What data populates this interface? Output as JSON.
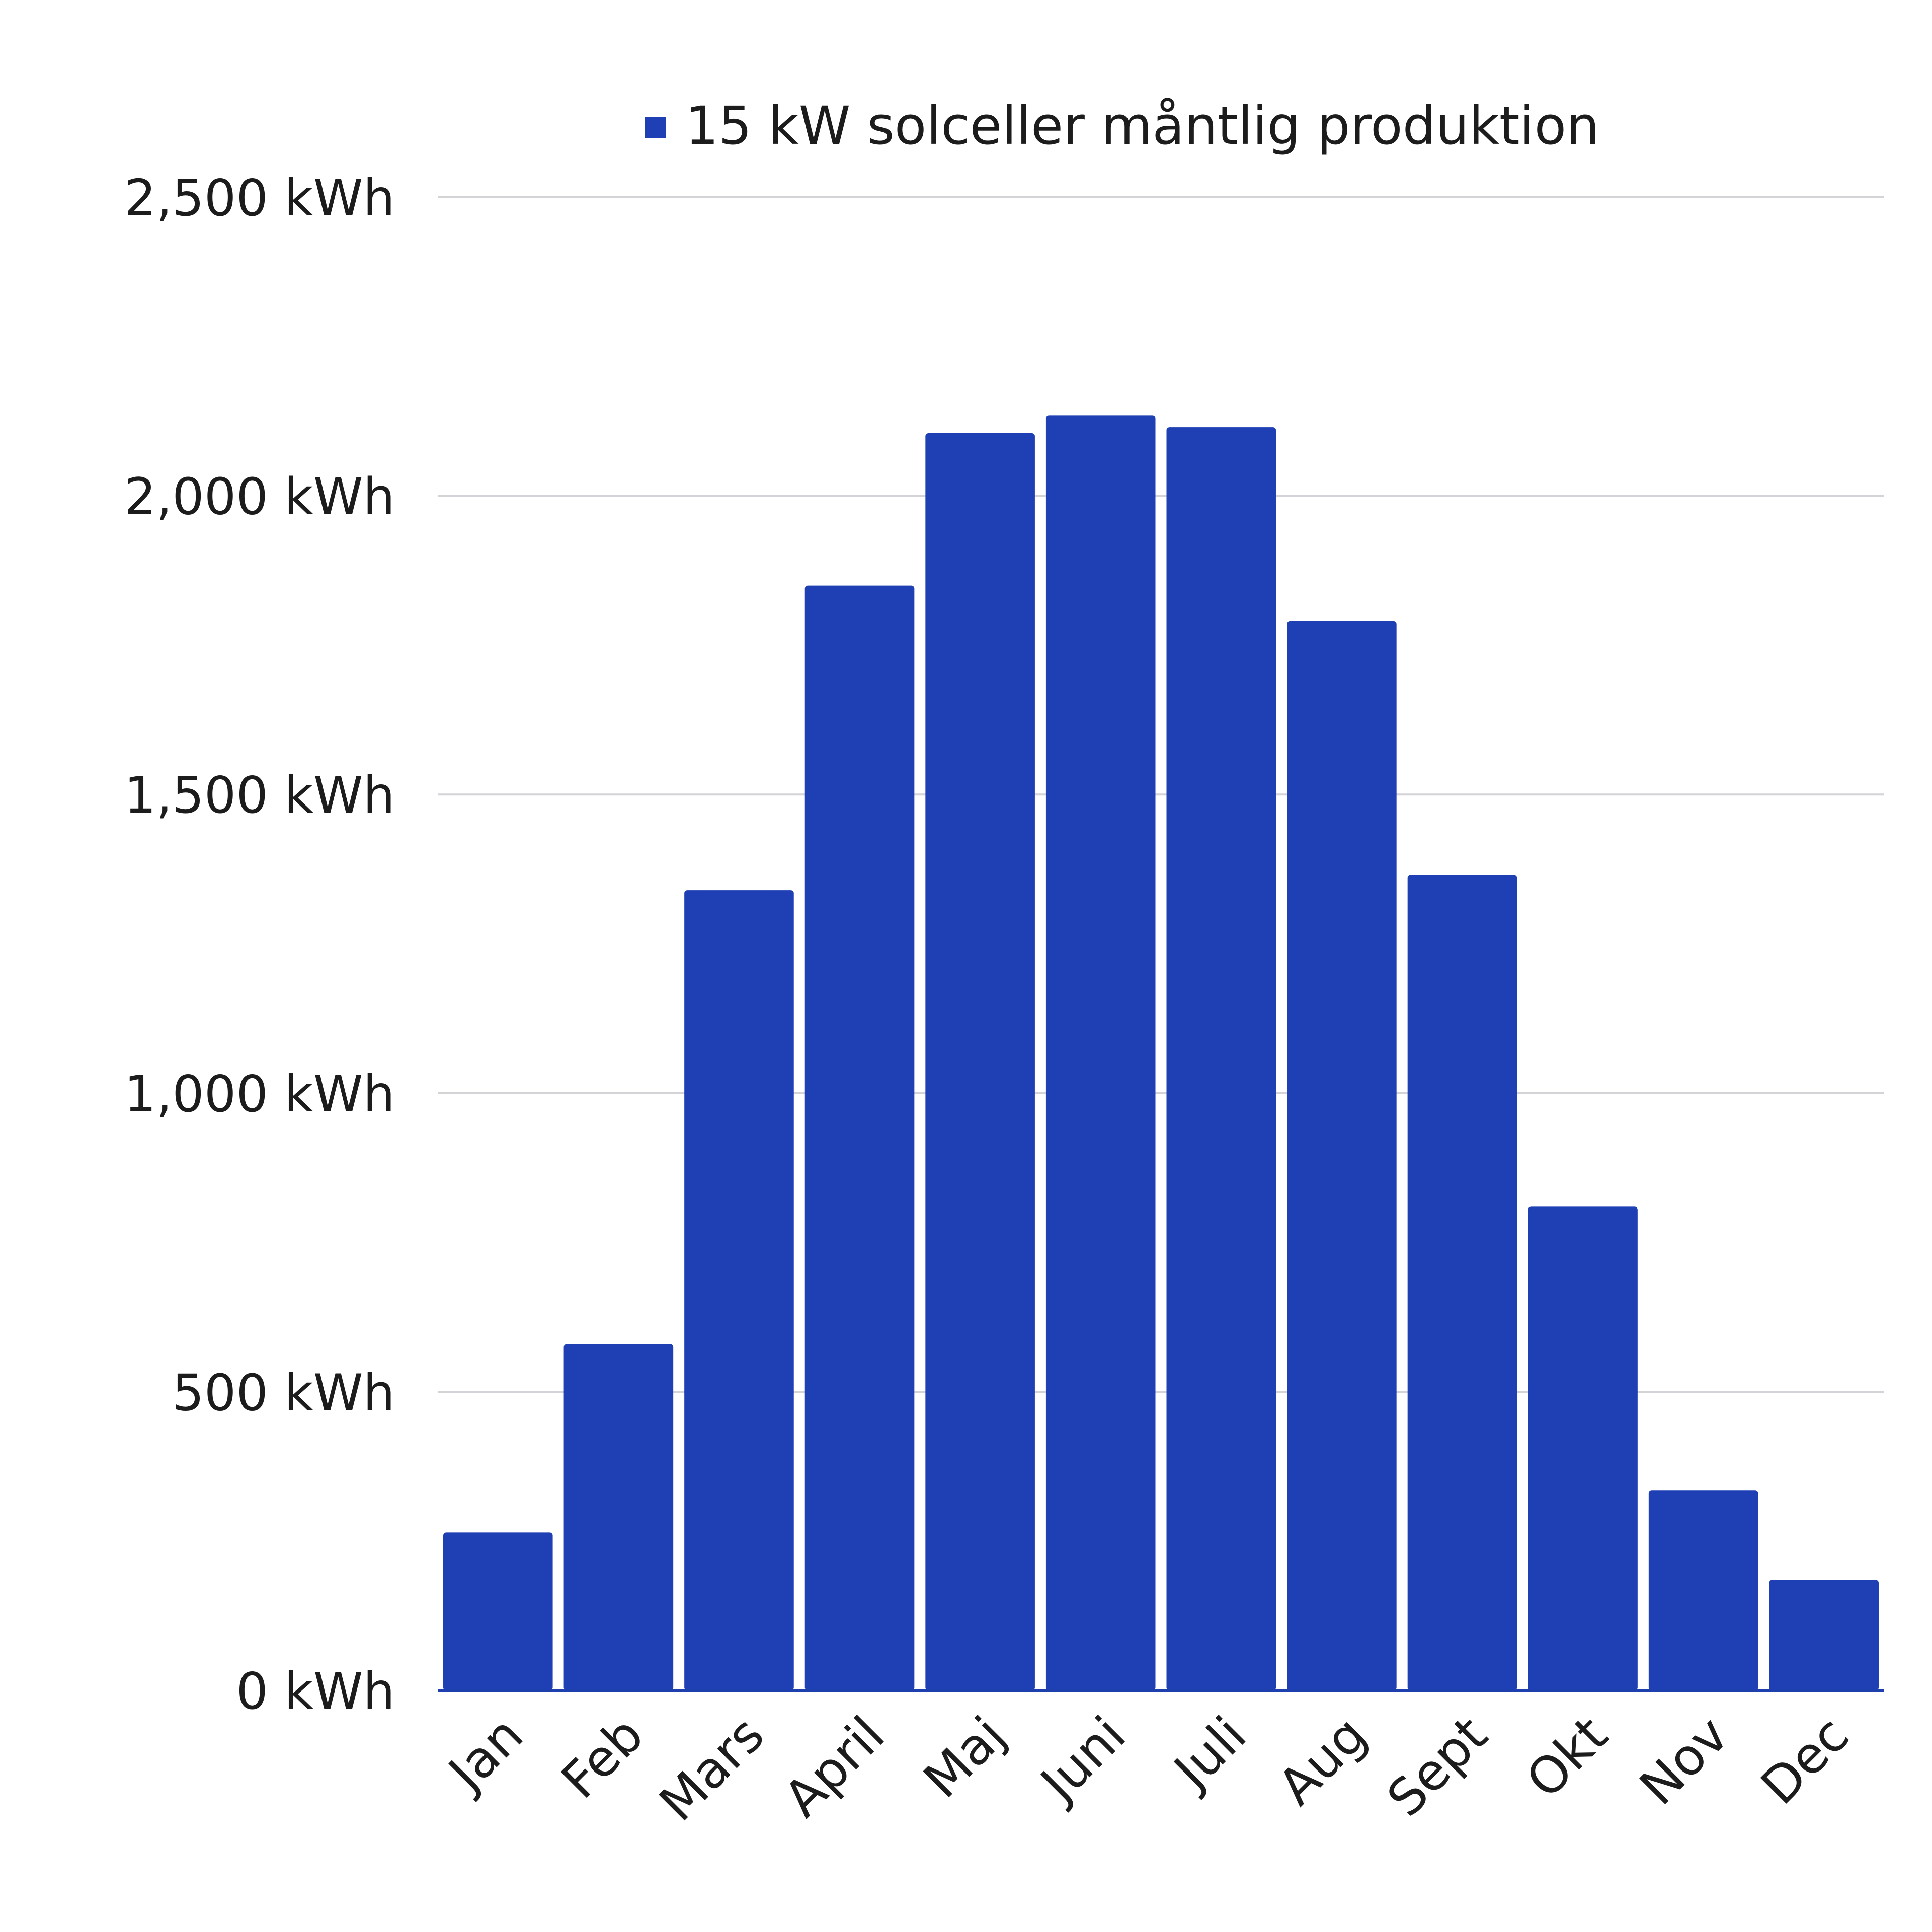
{
  "chart_data": {
    "type": "bar",
    "title": "",
    "xlabel": "",
    "ylabel": "",
    "categories": [
      "Jan",
      "Feb",
      "Mars",
      "April",
      "Maj",
      "Juni",
      "Juli",
      "Aug",
      "Sept",
      "Okt",
      "Nov",
      "Dec"
    ],
    "series": [
      {
        "name": "15 kW solceller måntlig produktion",
        "color": "#1f3fb4",
        "values": [
          265,
          580,
          1340,
          1850,
          2105,
          2135,
          2115,
          1790,
          1365,
          810,
          335,
          185
        ]
      }
    ],
    "ylim": [
      0,
      2500
    ],
    "yticks": [
      0,
      500,
      1000,
      1500,
      2000,
      2500
    ],
    "ytick_labels": [
      "0 kWh",
      "500 kWh",
      "1,000 kWh",
      "1,500 kWh",
      "2,000 kWh",
      "2,500 kWh"
    ],
    "grid": true,
    "legend_position": "top"
  }
}
